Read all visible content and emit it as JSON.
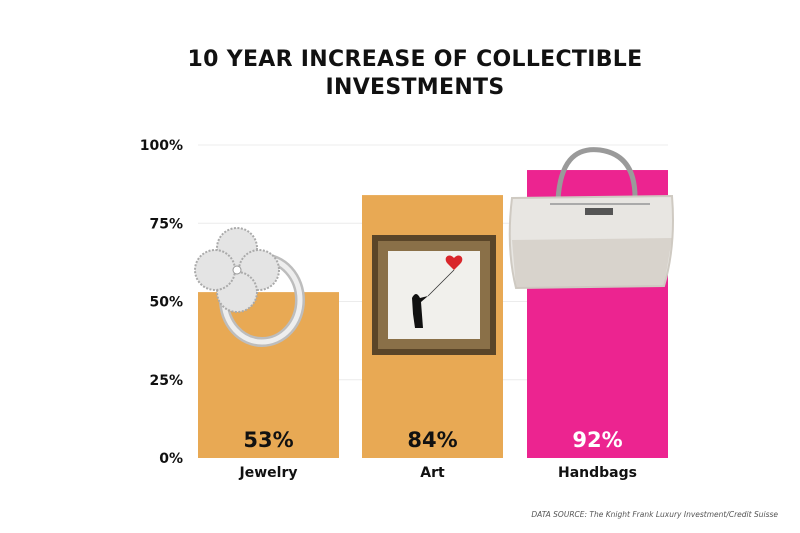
{
  "chart_data": {
    "type": "bar",
    "title_lines": [
      "10 YEAR INCREASE OF COLLECTIBLE",
      "INVESTMENTS"
    ],
    "categories": [
      "Jewelry",
      "Art",
      "Handbags"
    ],
    "values": [
      53,
      84,
      92
    ],
    "value_labels": [
      "53%",
      "84%",
      "92%"
    ],
    "bar_colors": [
      "#E8A954",
      "#E8A954",
      "#EC2490"
    ],
    "value_label_colors": [
      "#111111",
      "#111111",
      "#FFFFFF"
    ],
    "bar_images": [
      "ring-icon",
      "framed-painting-icon",
      "handbag-icon"
    ],
    "ylim": [
      0,
      100
    ],
    "yticks": [
      0,
      25,
      50,
      75,
      100
    ],
    "ytick_labels": [
      "0%",
      "25%",
      "50%",
      "75%",
      "100%"
    ],
    "grid": true,
    "xlabel": "",
    "ylabel": "",
    "source": "DATA SOURCE: The Knight Frank Luxury Investment/Credit Suisse"
  }
}
